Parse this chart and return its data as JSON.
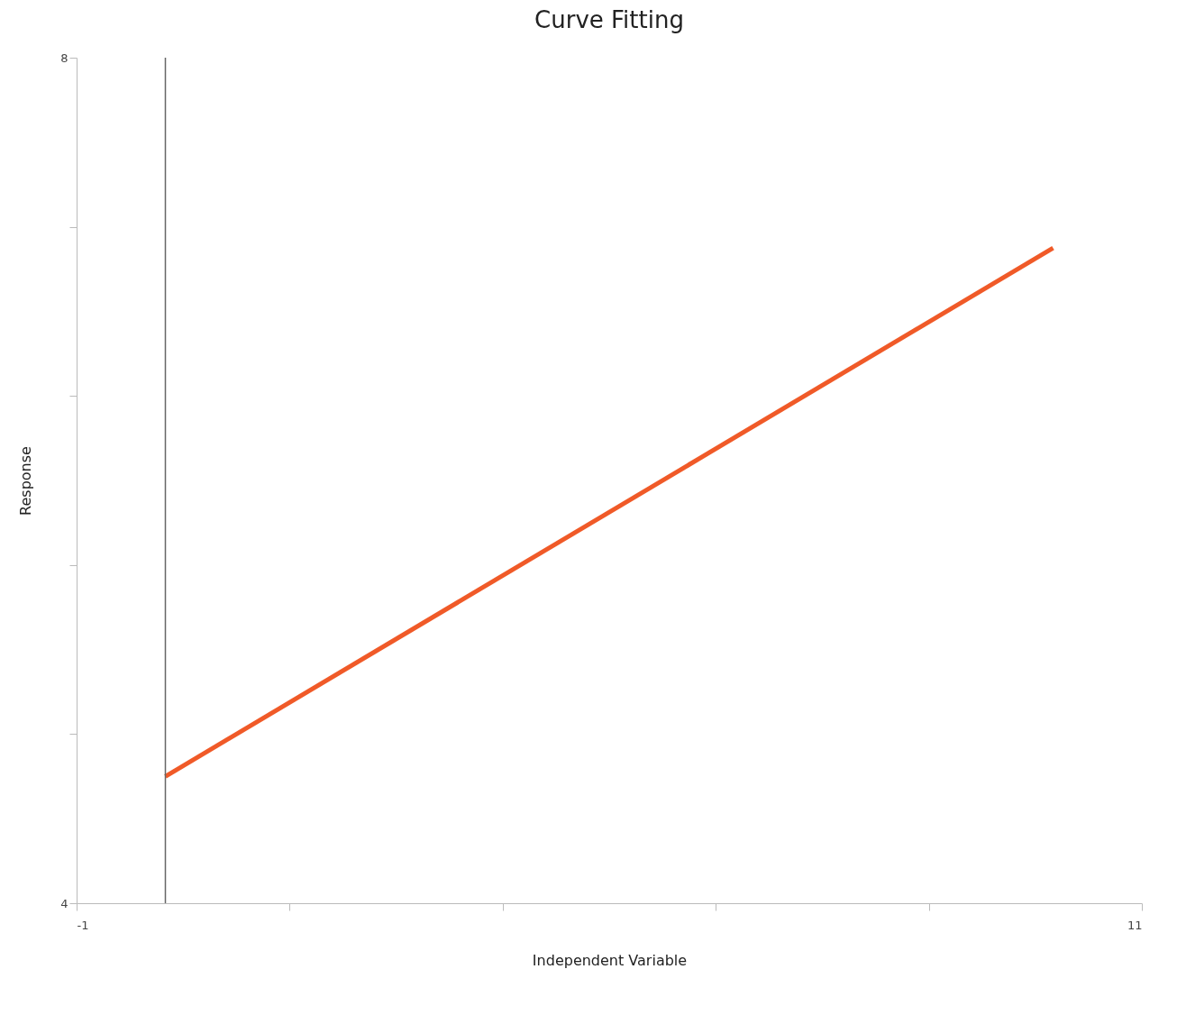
{
  "chart_data": {
    "type": "line",
    "title": "Curve Fitting",
    "xlabel": "Independent Variable",
    "ylabel": "Response",
    "x": [
      0,
      10
    ],
    "series": [
      {
        "color": "#f05a28",
        "values": [
          4.6,
          7.1
        ]
      }
    ],
    "xlim": [
      -1,
      11
    ],
    "xticks": [
      -1,
      {
        "value": 1.4,
        "label": null
      },
      {
        "value": 3.8,
        "label": null
      },
      {
        "value": 6.2,
        "label": null
      },
      {
        "value": 8.6,
        "label": null
      },
      11
    ],
    "ylim": [
      4,
      8
    ],
    "yticks": [
      4,
      {
        "value": 4.8,
        "label": null
      },
      {
        "value": 5.6,
        "label": null
      },
      {
        "value": 6.4,
        "label": null
      },
      {
        "value": 7.2,
        "label": null
      },
      8
    ],
    "ref_lines": [
      {
        "axis": "x",
        "value": 0,
        "color": "#666666"
      }
    ],
    "grid": false,
    "legend": false,
    "marker": "none",
    "line_style": "solid"
  }
}
